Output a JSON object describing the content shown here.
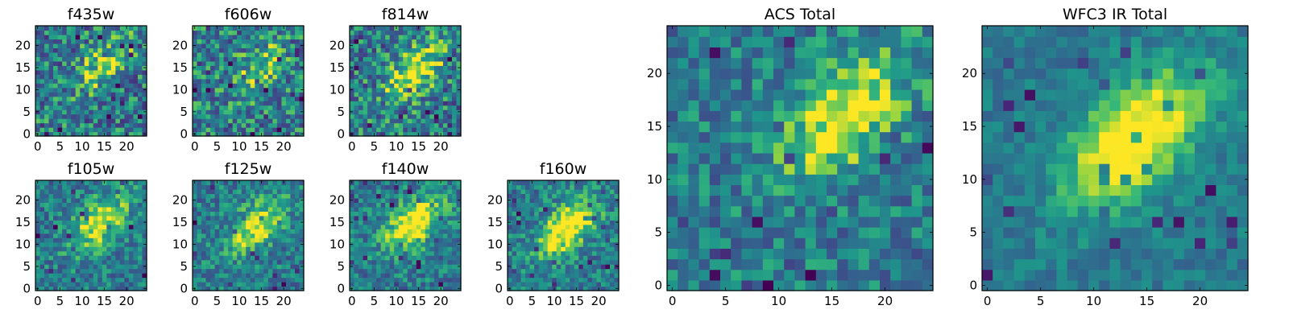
{
  "figure": {
    "title": ""
  },
  "chart_data": [
    {
      "type": "heatmap",
      "title": "f435w",
      "grid_size": 25,
      "xlim": [
        -0.5,
        24.5
      ],
      "ylim": [
        -0.5,
        24.5
      ],
      "xticks": [
        0,
        5,
        10,
        15,
        20
      ],
      "yticks": [
        0,
        5,
        10,
        15,
        20
      ],
      "xlabel": "",
      "ylabel": "",
      "colormap": "viridis",
      "blob_center": [
        15,
        16
      ],
      "blob_strength": "weak",
      "noise": "high"
    },
    {
      "type": "heatmap",
      "title": "f606w",
      "grid_size": 25,
      "xlim": [
        -0.5,
        24.5
      ],
      "ylim": [
        -0.5,
        24.5
      ],
      "xticks": [
        0,
        5,
        10,
        15,
        20
      ],
      "yticks": [
        0,
        5,
        10,
        15,
        20
      ],
      "xlabel": "",
      "ylabel": "",
      "colormap": "viridis",
      "blob_center": [
        15,
        15
      ],
      "blob_strength": "weak",
      "noise": "high"
    },
    {
      "type": "heatmap",
      "title": "f814w",
      "grid_size": 25,
      "xlim": [
        -0.5,
        24.5
      ],
      "ylim": [
        -0.5,
        24.5
      ],
      "xticks": [
        0,
        5,
        10,
        15,
        20
      ],
      "yticks": [
        0,
        5,
        10,
        15,
        20
      ],
      "xlabel": "",
      "ylabel": "",
      "colormap": "viridis",
      "blob_center": [
        14,
        14
      ],
      "blob_strength": "moderate",
      "noise": "high"
    },
    {
      "type": "heatmap",
      "title": "f105w",
      "grid_size": 25,
      "xlim": [
        -0.5,
        24.5
      ],
      "ylim": [
        -0.5,
        24.5
      ],
      "xticks": [
        0,
        5,
        10,
        15,
        20
      ],
      "yticks": [
        0,
        5,
        10,
        15,
        20
      ],
      "xlabel": "",
      "ylabel": "",
      "colormap": "viridis",
      "blob_center": [
        14,
        15
      ],
      "blob_strength": "moderate",
      "noise": "medium"
    },
    {
      "type": "heatmap",
      "title": "f125w",
      "grid_size": 25,
      "xlim": [
        -0.5,
        24.5
      ],
      "ylim": [
        -0.5,
        24.5
      ],
      "xticks": [
        0,
        5,
        10,
        15,
        20
      ],
      "yticks": [
        0,
        5,
        10,
        15,
        20
      ],
      "xlabel": "",
      "ylabel": "",
      "colormap": "viridis",
      "blob_center": [
        14,
        14
      ],
      "blob_strength": "moderate",
      "noise": "medium"
    },
    {
      "type": "heatmap",
      "title": "f140w",
      "grid_size": 25,
      "xlim": [
        -0.5,
        24.5
      ],
      "ylim": [
        -0.5,
        24.5
      ],
      "xticks": [
        0,
        5,
        10,
        15,
        20
      ],
      "yticks": [
        0,
        5,
        10,
        15,
        20
      ],
      "xlabel": "",
      "ylabel": "",
      "colormap": "viridis",
      "blob_center": [
        14,
        15
      ],
      "blob_strength": "strong",
      "noise": "medium"
    },
    {
      "type": "heatmap",
      "title": "f160w",
      "grid_size": 25,
      "xlim": [
        -0.5,
        24.5
      ],
      "ylim": [
        -0.5,
        24.5
      ],
      "xticks": [
        0,
        5,
        10,
        15,
        20
      ],
      "yticks": [
        0,
        5,
        10,
        15,
        20
      ],
      "xlabel": "",
      "ylabel": "",
      "colormap": "viridis",
      "blob_center": [
        13,
        14
      ],
      "blob_strength": "strong",
      "noise": "medium"
    },
    {
      "type": "heatmap",
      "title": "ACS Total",
      "grid_size": 25,
      "xlim": [
        -0.5,
        24.5
      ],
      "ylim": [
        -0.5,
        24.5
      ],
      "xticks": [
        0,
        5,
        10,
        15,
        20
      ],
      "yticks": [
        0,
        5,
        10,
        15,
        20
      ],
      "xlabel": "",
      "ylabel": "",
      "colormap": "viridis",
      "blob_center": [
        16,
        16
      ],
      "blob_strength": "moderate",
      "noise": "medium"
    },
    {
      "type": "heatmap",
      "title": "WFC3 IR Total",
      "grid_size": 25,
      "xlim": [
        -0.5,
        24.5
      ],
      "ylim": [
        -0.5,
        24.5
      ],
      "xticks": [
        0,
        5,
        10,
        15,
        20
      ],
      "yticks": [
        0,
        5,
        10,
        15,
        20
      ],
      "xlabel": "",
      "ylabel": "",
      "colormap": "viridis",
      "blob_center": [
        14,
        14
      ],
      "blob_strength": "strong",
      "noise": "low"
    }
  ]
}
